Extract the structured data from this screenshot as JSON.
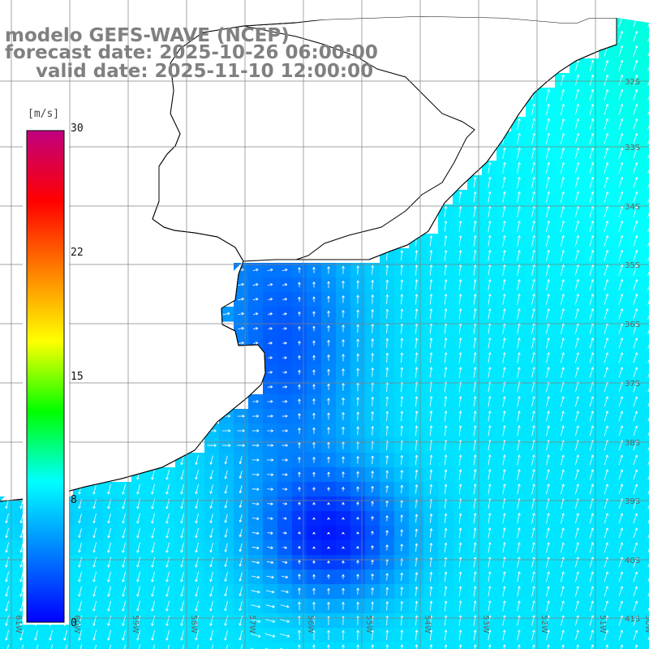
{
  "header": {
    "line1": "modelo GEFS-WAVE (NCEP)",
    "line2": "forecast date: 2025-10-26 06:00:00",
    "line3": "valid date: 2025-11-10 12:00:00"
  },
  "colorbar": {
    "unit": "[m/s]",
    "tick_labels": [
      "30",
      "22",
      "15",
      "8",
      "0"
    ],
    "range": [
      0,
      30
    ],
    "colors": [
      "#0000ff",
      "#0080ff",
      "#00ffff",
      "#00ff00",
      "#ffff00",
      "#ff8000",
      "#ff0000",
      "#c00080"
    ]
  },
  "map": {
    "lat_labels": [
      "32S",
      "33S",
      "34S",
      "35S",
      "36S",
      "37S",
      "38S",
      "39S",
      "40S",
      "41S"
    ],
    "lon_labels": [
      "61W",
      "60W",
      "59W",
      "58W",
      "57W",
      "56W",
      "55W",
      "54W",
      "53W",
      "52W",
      "51W",
      "50W"
    ],
    "grid_color": "#808080",
    "land_color": "#ffffff",
    "coast_color": "#000000",
    "arrow_color": "#ffffff"
  },
  "chart_data": {
    "type": "heatmap",
    "variable": "wind speed",
    "unit": "m/s",
    "value_range": [
      0,
      30
    ],
    "lon_range": [
      -61.5,
      -50
    ],
    "lat_range": [
      -41.5,
      -31.2
    ],
    "approx_fields": {
      "plata_estuary_min": 2,
      "central_minimum_near_56W_39S": 1,
      "northeast_max_near_51W_33S": 8,
      "southwest_near_61W_40S": 7
    }
  }
}
